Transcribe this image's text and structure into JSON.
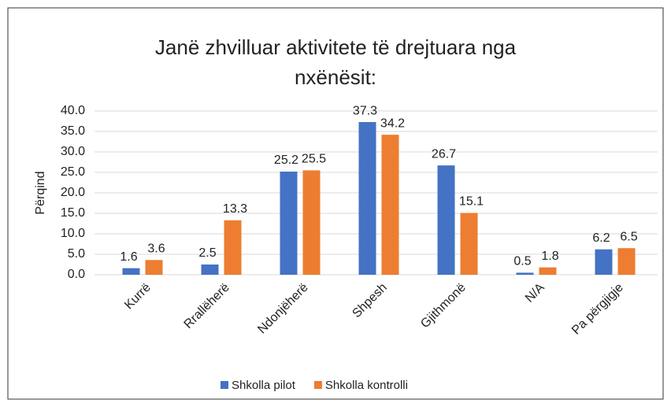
{
  "chart_data": {
    "type": "bar",
    "title": [
      "Janë zhvilluar aktivitete të drejtuara nga",
      "nxënësit:"
    ],
    "y_label": "Përqind",
    "categories": [
      "Kurrë",
      "Rrallëherë",
      "Ndonjëherë",
      "Shpesh",
      "Gjithmonë",
      "N/A",
      "Pa përgjigje"
    ],
    "series": [
      {
        "name": "Shkolla pilot",
        "color": "#4472c4",
        "values": [
          1.6,
          2.5,
          25.2,
          37.3,
          26.7,
          0.5,
          6.2
        ]
      },
      {
        "name": "Shkolla kontrolli",
        "color": "#ed7d31",
        "values": [
          3.6,
          13.3,
          25.5,
          34.2,
          15.1,
          1.8,
          6.5
        ]
      }
    ],
    "ylim": [
      0,
      40
    ],
    "yticks": [
      {
        "value": 0,
        "label": "0.0"
      },
      {
        "value": 5,
        "label": "5.0"
      },
      {
        "value": 10,
        "label": "10.0"
      },
      {
        "value": 15,
        "label": "15.0"
      },
      {
        "value": 20,
        "label": "20.0"
      },
      {
        "value": 25,
        "label": "25.0"
      },
      {
        "value": 30,
        "label": "30.0"
      },
      {
        "value": 35,
        "label": "35.0"
      },
      {
        "value": 40,
        "label": "40.0"
      }
    ],
    "grid": true,
    "legend": "bottom"
  }
}
